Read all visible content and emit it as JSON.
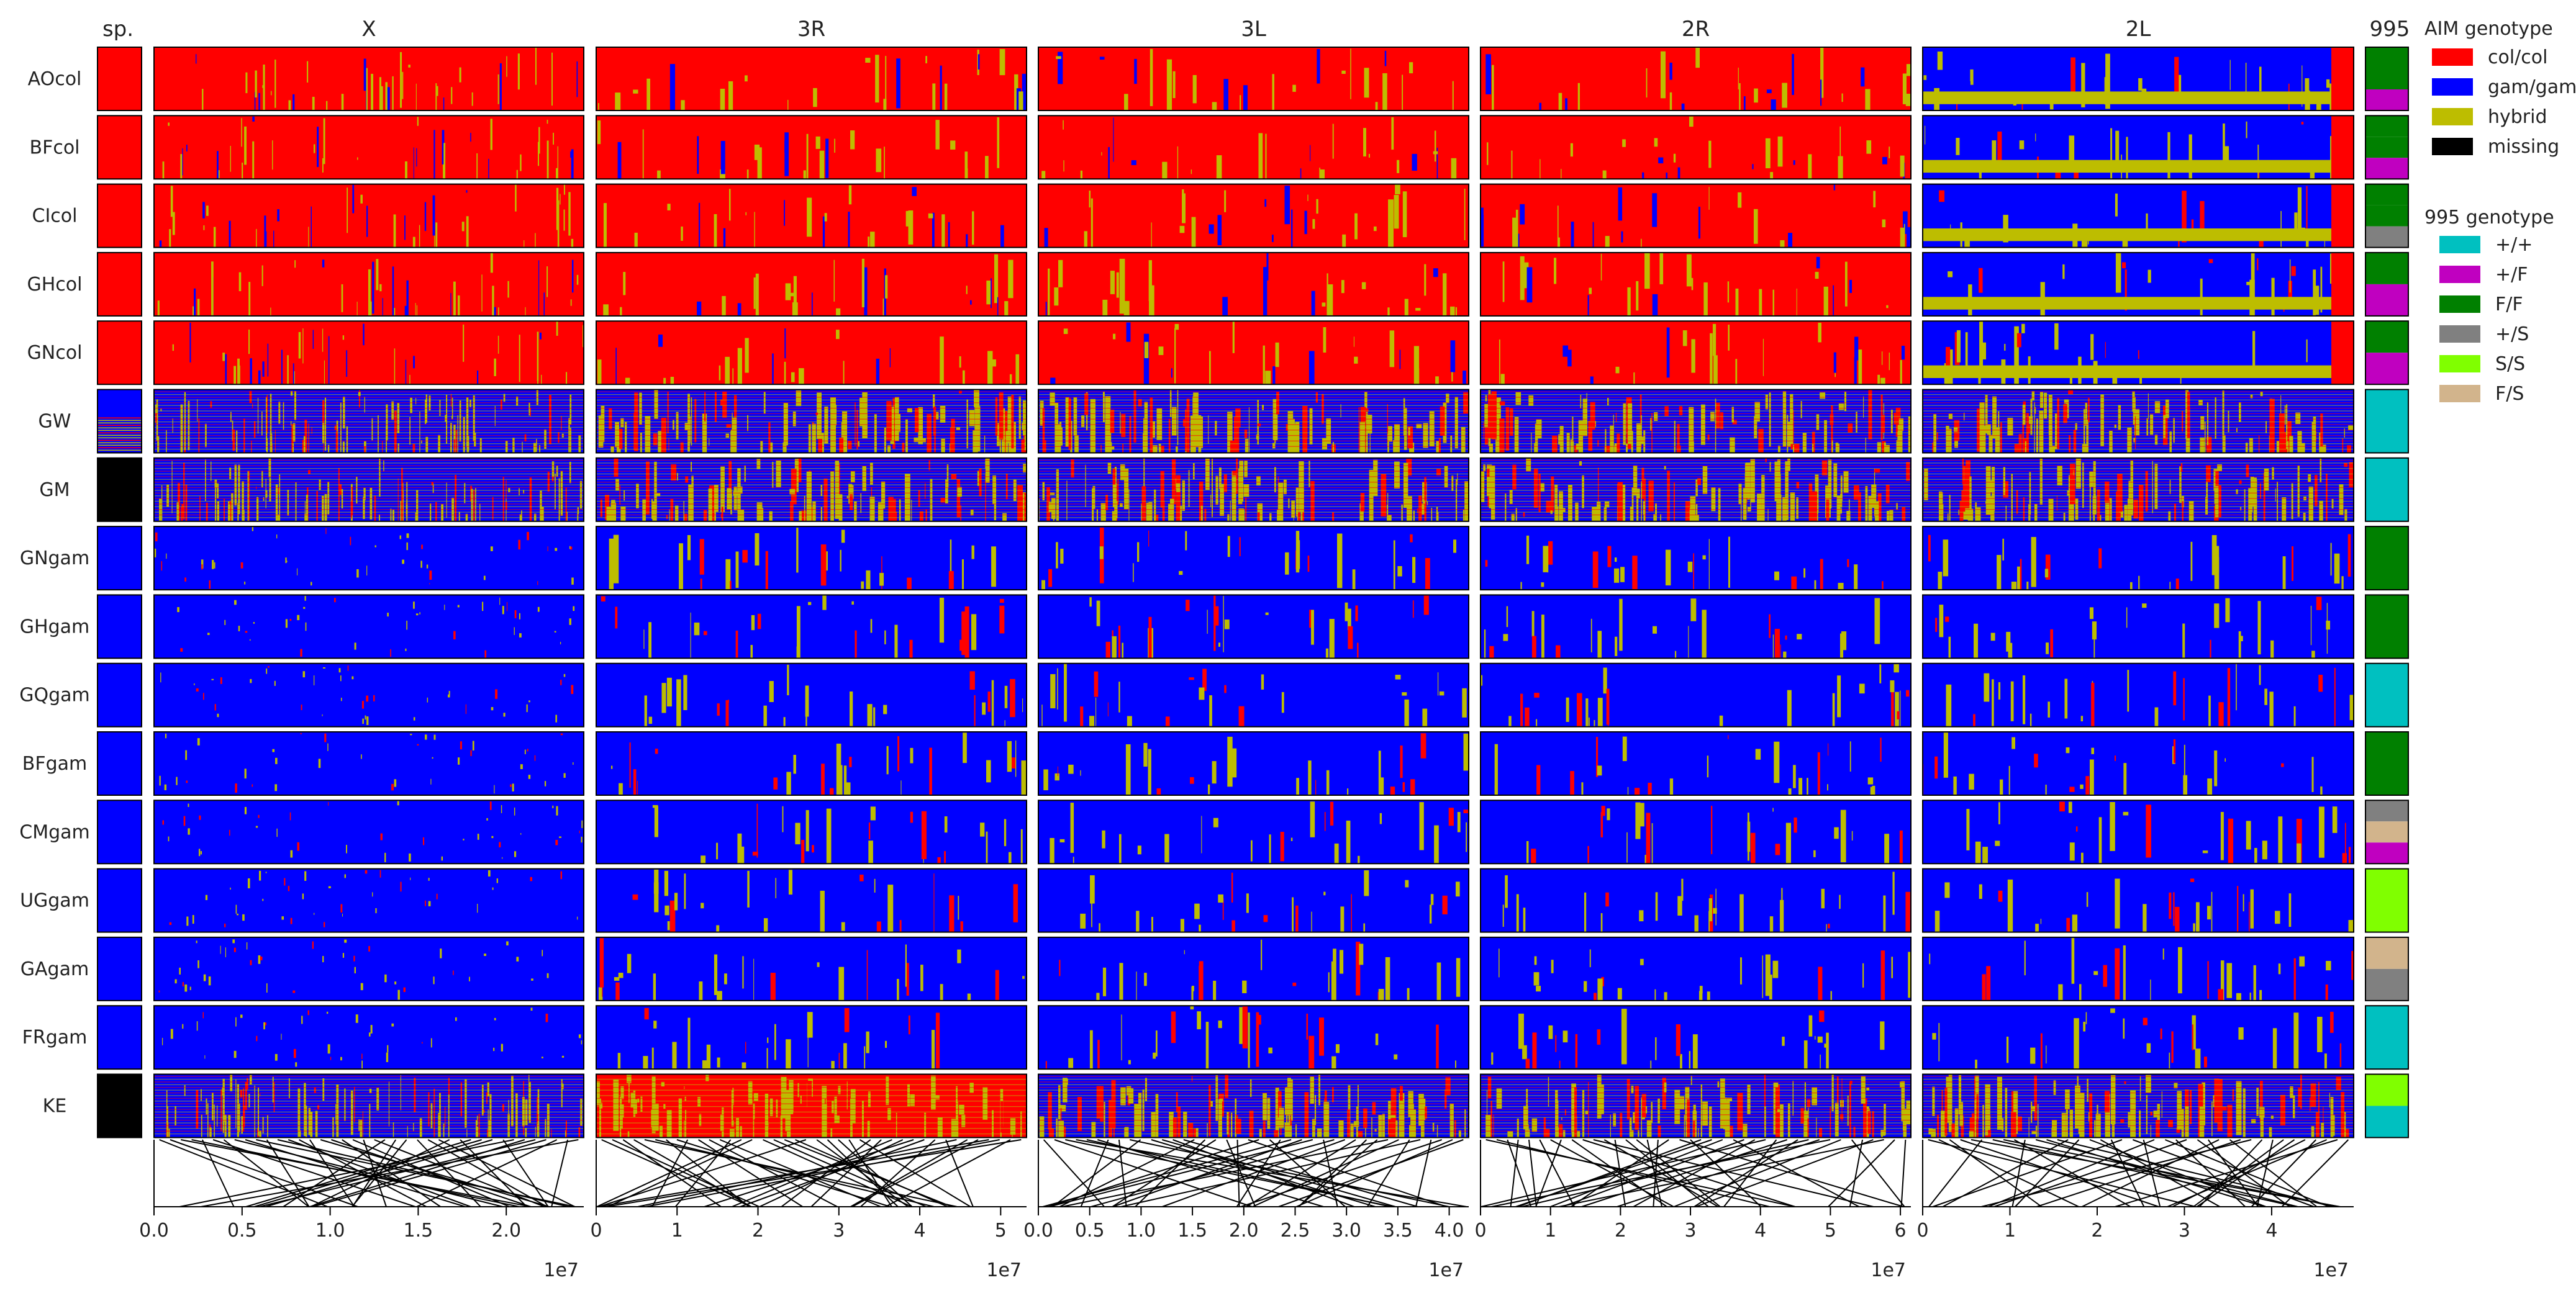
{
  "chart_data": {
    "type": "heatmap",
    "column_headers": {
      "species": "sp.",
      "marker_995": "995"
    },
    "arms": [
      {
        "name": "X",
        "xlim": [
          0,
          24.4
        ],
        "ticks": [
          "0.0",
          "0.5",
          "1.0",
          "1.5",
          "2.0"
        ],
        "tick_values": [
          0,
          5,
          10,
          15,
          20
        ],
        "scale_label": "1e7"
      },
      {
        "name": "3R",
        "xlim": [
          0,
          53.2
        ],
        "ticks": [
          "0",
          "1",
          "2",
          "3",
          "4",
          "5"
        ],
        "tick_values": [
          0,
          10,
          20,
          30,
          40,
          50
        ],
        "scale_label": "1e7"
      },
      {
        "name": "3L",
        "xlim": [
          0,
          41.9
        ],
        "ticks": [
          "0.0",
          "0.5",
          "1.0",
          "1.5",
          "2.0",
          "2.5",
          "3.0",
          "3.5",
          "4.0"
        ],
        "tick_values": [
          0,
          5,
          10,
          15,
          20,
          25,
          30,
          35,
          40
        ],
        "scale_label": "1e7"
      },
      {
        "name": "2R",
        "xlim": [
          0,
          61.5
        ],
        "ticks": [
          "0",
          "1",
          "2",
          "3",
          "4",
          "5",
          "6"
        ],
        "tick_values": [
          0,
          10,
          20,
          30,
          40,
          50,
          60
        ],
        "scale_label": "1e7"
      },
      {
        "name": "2L",
        "xlim": [
          0,
          49.4
        ],
        "ticks": [
          "0",
          "1",
          "2",
          "3",
          "4"
        ],
        "tick_values": [
          0,
          10,
          20,
          30,
          40
        ],
        "scale_label": "1e7"
      }
    ],
    "populations": [
      {
        "name": "AOcol",
        "species": "red",
        "group": "col",
        "s995": [
          "green",
          "green",
          "magenta"
        ]
      },
      {
        "name": "BFcol",
        "species": "red",
        "group": "col",
        "s995": [
          "green",
          "green",
          "magenta"
        ]
      },
      {
        "name": "CIcol",
        "species": "red",
        "group": "col",
        "s995": [
          "green",
          "green",
          "gray"
        ]
      },
      {
        "name": "GHcol",
        "species": "red",
        "group": "col",
        "s995": [
          "green",
          "magenta"
        ]
      },
      {
        "name": "GNcol",
        "species": "red",
        "group": "col",
        "s995": [
          "green",
          "magenta"
        ]
      },
      {
        "name": "GW",
        "species": "mixed",
        "group": "hyb",
        "s995": [
          "cyan"
        ]
      },
      {
        "name": "GM",
        "species": "black",
        "group": "hyb",
        "s995": [
          "cyan"
        ]
      },
      {
        "name": "GNgam",
        "species": "blue",
        "group": "gam",
        "s995": [
          "green"
        ]
      },
      {
        "name": "GHgam",
        "species": "blue",
        "group": "gam",
        "s995": [
          "green"
        ]
      },
      {
        "name": "GQgam",
        "species": "blue",
        "group": "gam",
        "s995": [
          "cyan"
        ]
      },
      {
        "name": "BFgam",
        "species": "blue",
        "group": "gam",
        "s995": [
          "green"
        ]
      },
      {
        "name": "CMgam",
        "species": "blue",
        "group": "gam",
        "s995": [
          "gray",
          "tan",
          "magenta"
        ]
      },
      {
        "name": "UGgam",
        "species": "blue",
        "group": "gam",
        "s995": [
          "lime"
        ]
      },
      {
        "name": "GAgam",
        "species": "blue",
        "group": "gam",
        "s995": [
          "tan",
          "gray"
        ]
      },
      {
        "name": "FRgam",
        "species": "blue",
        "group": "gam",
        "s995": [
          "cyan"
        ]
      },
      {
        "name": "KE",
        "species": "black",
        "group": "ke",
        "s995": [
          "lime",
          "cyan"
        ]
      }
    ],
    "legend_aim": {
      "title": "AIM genotype",
      "items": [
        {
          "label": "col/col",
          "color": "#ff0000"
        },
        {
          "label": "gam/gam",
          "color": "#0000ff"
        },
        {
          "label": "hybrid",
          "color": "#bdbd00"
        },
        {
          "label": "missing",
          "color": "#000000"
        }
      ]
    },
    "legend_995": {
      "title": "995 genotype",
      "items": [
        {
          "label": "+/+",
          "color": "#00c0c0"
        },
        {
          "label": "+/F",
          "color": "#c000c0"
        },
        {
          "label": "F/F",
          "color": "#008000"
        },
        {
          "label": "+/S",
          "color": "#808080"
        },
        {
          "label": "S/S",
          "color": "#80ff00"
        },
        {
          "label": "F/S",
          "color": "#d2b48c"
        }
      ]
    },
    "grid": false,
    "legend_position": "right"
  }
}
